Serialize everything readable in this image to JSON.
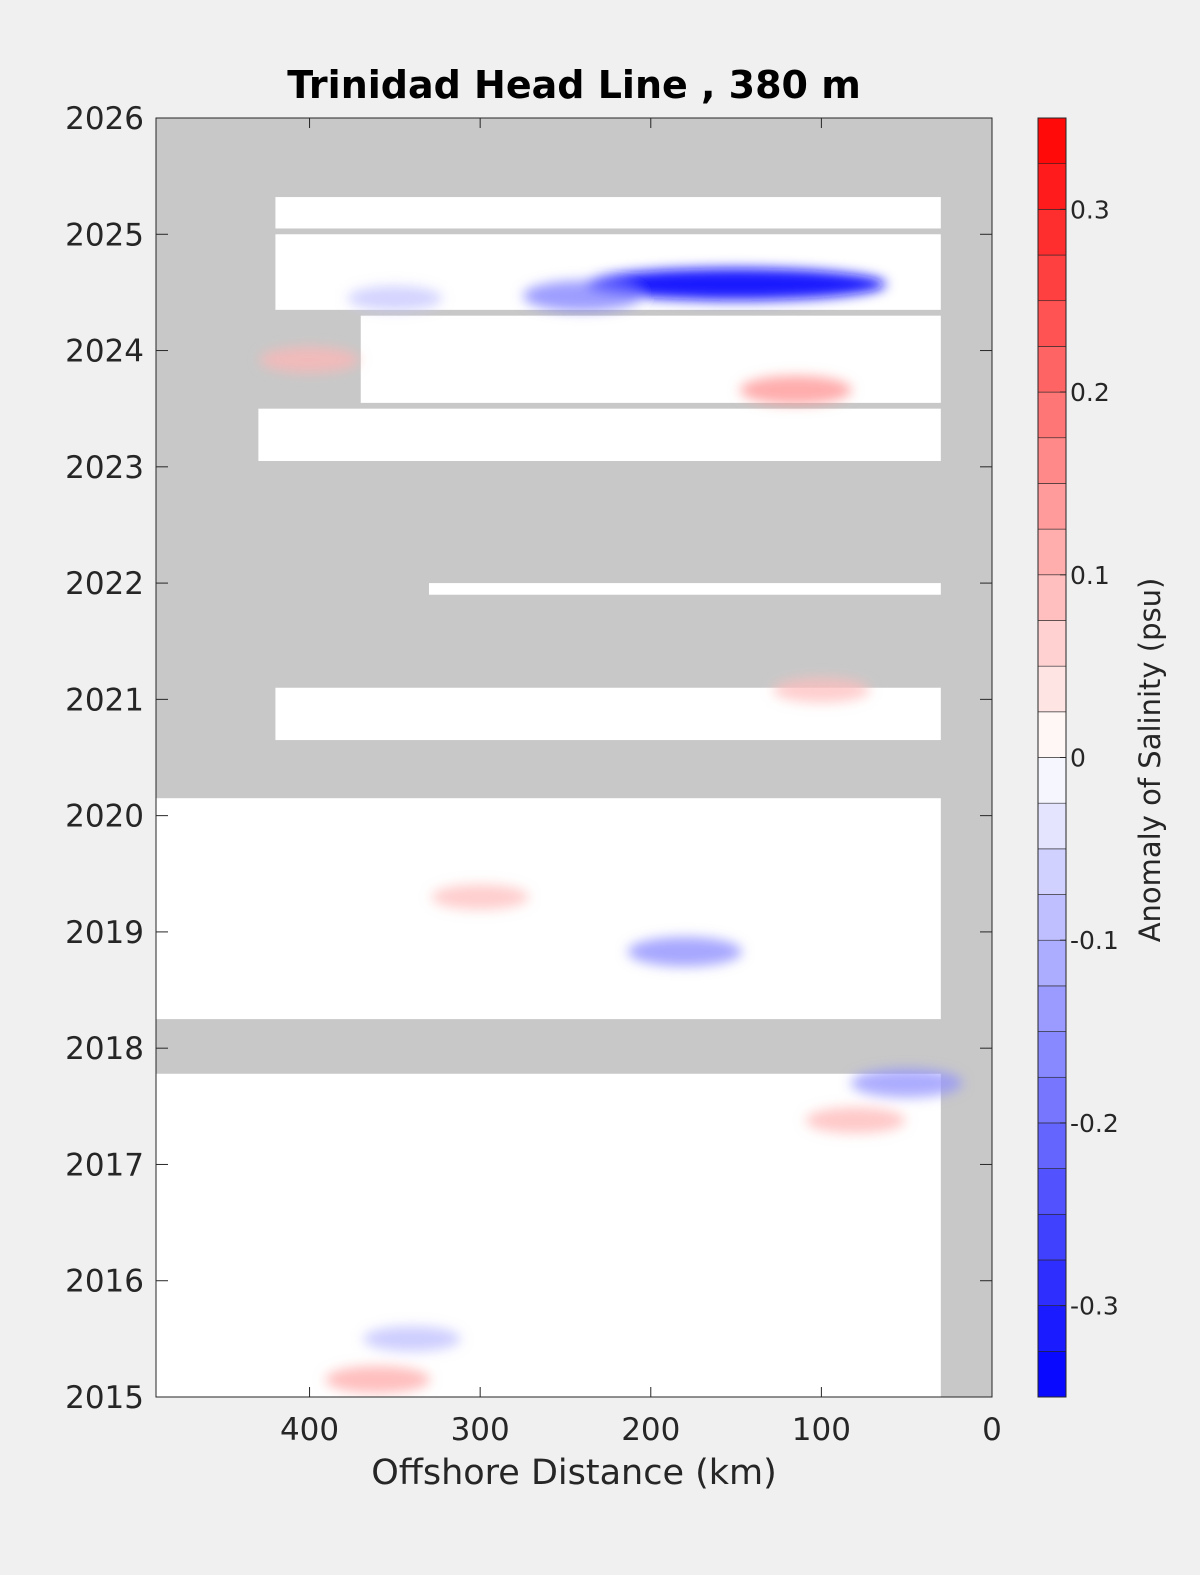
{
  "chart_data": {
    "type": "heatmap",
    "title": "Trinidad Head Line , 380 m",
    "xlabel": "Offshore Distance (km)",
    "ylabel": "",
    "x_ticks": [
      "400",
      "300",
      "200",
      "100",
      "0"
    ],
    "y_ticks": [
      "2015",
      "2016",
      "2017",
      "2018",
      "2019",
      "2020",
      "2021",
      "2022",
      "2023",
      "2024",
      "2025",
      "2026"
    ],
    "xlim": [
      490,
      0
    ],
    "x_reversed": true,
    "ylim": [
      2015,
      2026
    ],
    "grid": false,
    "colorbar": {
      "label": "Anomaly of Salinity (psu)",
      "ticks": [
        "0.3",
        "0.2",
        "0.1",
        "0",
        "-0.1",
        "-0.2",
        "-0.3"
      ],
      "range": [
        -0.35,
        0.35
      ],
      "levels": 28,
      "placement": "right"
    },
    "colors": {
      "positive": "#ff0000",
      "negative": "#0000ff",
      "zero": "#ffffff",
      "no_data": "#c8c8c8",
      "figure_background": "#f0f0f0"
    },
    "data_coverage_km": [
      30,
      490
    ],
    "data_rows": [
      {
        "y0": 2025.05,
        "y1": 2025.32,
        "x_far": 420
      },
      {
        "y0": 2024.35,
        "y1": 2025.0,
        "x_far": 420
      },
      {
        "y0": 2023.05,
        "y1": 2023.5,
        "x_far": 430
      },
      {
        "y0": 2023.55,
        "y1": 2024.3,
        "x_far": 370
      },
      {
        "y0": 2021.9,
        "y1": 2022.0,
        "x_far": 330
      },
      {
        "y0": 2020.65,
        "y1": 2021.1,
        "x_far": 420
      },
      {
        "y0": 2018.25,
        "y1": 2020.15,
        "x_far": 490
      },
      {
        "y0": 2015.0,
        "y1": 2017.78,
        "x_far": 490
      }
    ],
    "anomaly_features": [
      {
        "x": 150,
        "y": 2024.57,
        "value": -0.33,
        "note": "strong negative band"
      },
      {
        "x": 240,
        "y": 2024.47,
        "value": -0.18
      },
      {
        "x": 350,
        "y": 2024.45,
        "value": -0.08
      },
      {
        "x": 115,
        "y": 2023.66,
        "value": 0.15
      },
      {
        "x": 400,
        "y": 2023.92,
        "value": 0.1
      },
      {
        "x": 180,
        "y": 2018.83,
        "value": -0.16
      },
      {
        "x": 300,
        "y": 2019.3,
        "value": 0.09
      },
      {
        "x": 360,
        "y": 2015.15,
        "value": 0.12
      },
      {
        "x": 50,
        "y": 2017.7,
        "value": -0.15
      },
      {
        "x": 100,
        "y": 2021.08,
        "value": 0.09
      },
      {
        "x": 340,
        "y": 2015.5,
        "value": -0.09
      },
      {
        "x": 80,
        "y": 2017.38,
        "value": 0.1
      }
    ]
  }
}
